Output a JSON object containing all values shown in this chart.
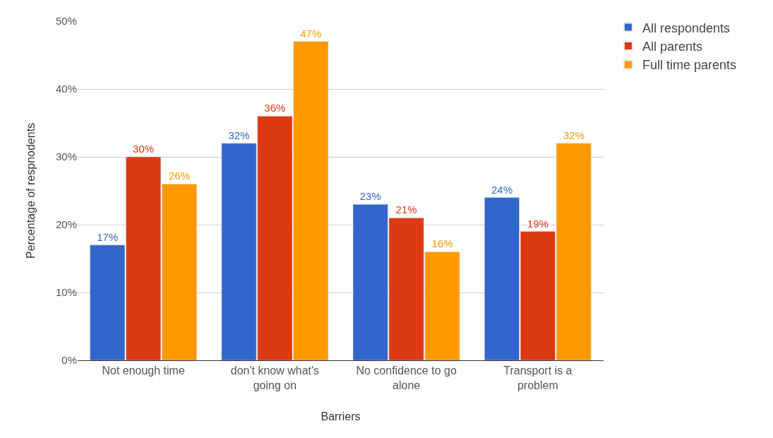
{
  "chart_data": {
    "type": "bar",
    "xlabel": "Barriers",
    "ylabel": "Percentage of respnodents",
    "categories": [
      "Not enough time",
      "don't know what's going on",
      "No confidence to go alone",
      "Transport is a problem"
    ],
    "series": [
      {
        "name": "All respondents",
        "color": "#3366cc",
        "values": [
          17,
          32,
          23,
          24
        ],
        "value_labels": [
          "17%",
          "32%",
          "23%",
          "24%"
        ]
      },
      {
        "name": "All parents",
        "color": "#dc3912",
        "values": [
          30,
          36,
          21,
          19
        ],
        "value_labels": [
          "30%",
          "36%",
          "21%",
          "19%"
        ]
      },
      {
        "name": "Full time parents",
        "color": "#ff9900",
        "values": [
          26,
          47,
          16,
          32
        ],
        "value_labels": [
          "26%",
          "47%",
          "16%",
          "32%"
        ]
      }
    ],
    "ylim": [
      0,
      50
    ],
    "yticks": [
      {
        "value": 0,
        "label": "0%"
      },
      {
        "value": 10,
        "label": "10%"
      },
      {
        "value": 20,
        "label": "20%"
      },
      {
        "value": 30,
        "label": "30%"
      },
      {
        "value": 40,
        "label": "40%"
      },
      {
        "value": 50,
        "label": "50%"
      }
    ],
    "grid": "y",
    "legend": "top right"
  }
}
